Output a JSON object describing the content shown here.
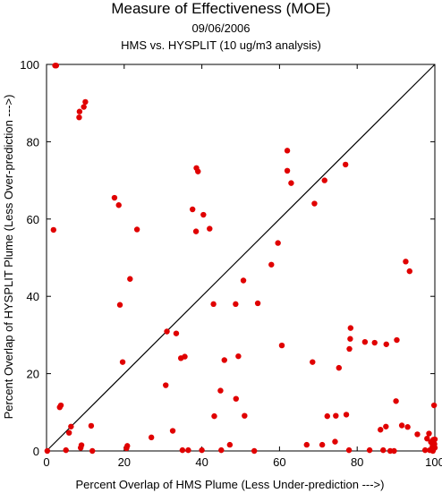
{
  "titles": {
    "main": "Measure of Effectiveness (MOE)",
    "date": "09/06/2006",
    "subtitle": "HMS vs. HYSPLIT  (10 ug/m3 analysis)"
  },
  "chart_data": {
    "type": "scatter",
    "xlabel": "Percent Overlap of HMS Plume (Less Under-prediction --->)",
    "ylabel": "Percent Overlap of HYSPLIT Plume (Less Over-prediction --->)",
    "xlim": [
      0,
      100
    ],
    "ylim": [
      0,
      100
    ],
    "xticks": [
      0,
      20,
      40,
      60,
      80,
      100
    ],
    "yticks": [
      0,
      20,
      40,
      60,
      80,
      100
    ],
    "reference_line": {
      "from": [
        0,
        0
      ],
      "to": [
        100,
        100
      ],
      "color": "#000000"
    },
    "marker_color": "#e00000",
    "points": [
      [
        0.2,
        0
      ],
      [
        1.8,
        57.2
      ],
      [
        2.2,
        99.7
      ],
      [
        2.5,
        99.7
      ],
      [
        3.4,
        11.3
      ],
      [
        3.7,
        11.8
      ],
      [
        5.0,
        0.2
      ],
      [
        5.8,
        4.7
      ],
      [
        6.3,
        6.3
      ],
      [
        8.4,
        86.3
      ],
      [
        8.5,
        87.8
      ],
      [
        8.8,
        0.8
      ],
      [
        9.0,
        1.5
      ],
      [
        9.6,
        89.0
      ],
      [
        10.0,
        90.3
      ],
      [
        11.5,
        6.5
      ],
      [
        11.8,
        0
      ],
      [
        17.5,
        65.5
      ],
      [
        18.6,
        63.6
      ],
      [
        18.9,
        37.8
      ],
      [
        19.6,
        23.0
      ],
      [
        20.6,
        0.7
      ],
      [
        20.8,
        1.3
      ],
      [
        21.5,
        44.5
      ],
      [
        23.3,
        57.3
      ],
      [
        27.0,
        3.5
      ],
      [
        30.7,
        17.0
      ],
      [
        31.0,
        30.9
      ],
      [
        32.5,
        5.2
      ],
      [
        33.4,
        30.4
      ],
      [
        34.6,
        24.0
      ],
      [
        35.0,
        0.2
      ],
      [
        35.6,
        24.4
      ],
      [
        36.5,
        0.2
      ],
      [
        37.6,
        62.5
      ],
      [
        38.5,
        56.8
      ],
      [
        38.6,
        73.2
      ],
      [
        39.0,
        72.3
      ],
      [
        40.0,
        0.2
      ],
      [
        40.4,
        61.1
      ],
      [
        42.0,
        57.5
      ],
      [
        43.0,
        38.0
      ],
      [
        43.2,
        9.0
      ],
      [
        44.8,
        15.6
      ],
      [
        45.0,
        0.2
      ],
      [
        45.8,
        23.5
      ],
      [
        47.2,
        1.6
      ],
      [
        48.7,
        38.0
      ],
      [
        48.8,
        13.5
      ],
      [
        49.4,
        24.5
      ],
      [
        50.7,
        44.1
      ],
      [
        51.0,
        9.1
      ],
      [
        53.5,
        0
      ],
      [
        54.4,
        38.2
      ],
      [
        57.9,
        48.2
      ],
      [
        59.6,
        53.8
      ],
      [
        60.6,
        27.3
      ],
      [
        62.0,
        77.7
      ],
      [
        62.0,
        72.5
      ],
      [
        63.0,
        69.3
      ],
      [
        67.0,
        1.6
      ],
      [
        68.5,
        23.0
      ],
      [
        69.0,
        64.0
      ],
      [
        71.0,
        1.6
      ],
      [
        71.6,
        70.0
      ],
      [
        72.3,
        9.0
      ],
      [
        74.3,
        2.4
      ],
      [
        74.5,
        9.1
      ],
      [
        75.3,
        21.5
      ],
      [
        77.0,
        74.1
      ],
      [
        77.2,
        9.4
      ],
      [
        77.9,
        0.2
      ],
      [
        78.0,
        26.4
      ],
      [
        78.2,
        29.0
      ],
      [
        78.3,
        31.8
      ],
      [
        82.0,
        28.2
      ],
      [
        83.2,
        0.2
      ],
      [
        84.5,
        28.0
      ],
      [
        86.0,
        5.5
      ],
      [
        86.7,
        0.2
      ],
      [
        87.4,
        6.3
      ],
      [
        87.5,
        27.6
      ],
      [
        88.5,
        0
      ],
      [
        89.5,
        0
      ],
      [
        90.0,
        12.9
      ],
      [
        90.2,
        28.7
      ],
      [
        91.5,
        6.6
      ],
      [
        92.5,
        49.0
      ],
      [
        93.0,
        6.2
      ],
      [
        93.5,
        46.5
      ],
      [
        95.5,
        4.3
      ],
      [
        97.5,
        0.2
      ],
      [
        98.0,
        3.2
      ],
      [
        98.5,
        4.5
      ],
      [
        98.7,
        0.2
      ],
      [
        99.0,
        2.3
      ],
      [
        99.2,
        0.5
      ],
      [
        99.4,
        1.2
      ],
      [
        99.6,
        2.9
      ],
      [
        99.8,
        11.8
      ],
      [
        99.9,
        1.8
      ],
      [
        100.0,
        0.8
      ],
      [
        100.0,
        3.0
      ],
      [
        99.5,
        0.0
      ]
    ]
  }
}
